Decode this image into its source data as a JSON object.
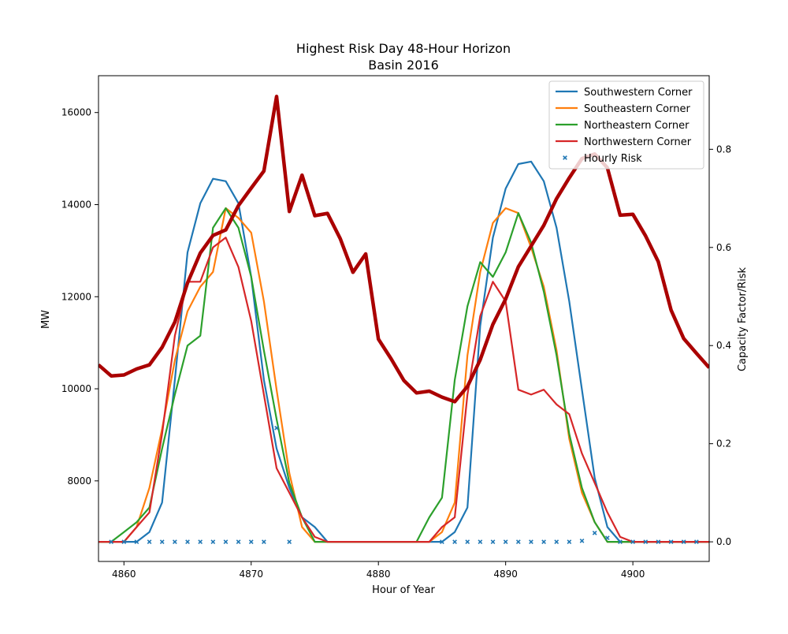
{
  "chart_data": {
    "type": "line",
    "title": "Highest Risk Day 48-Hour Horizon",
    "subtitle": "Basin 2016",
    "xlabel": "Hour of Year",
    "ylabel": "MW",
    "y2label": "Capacity Factor/Risk",
    "xlim": [
      4858,
      4906
    ],
    "ylim": [
      6250,
      16800
    ],
    "y2lim": [
      -0.04,
      0.95
    ],
    "x_ticks": [
      4860,
      4870,
      4880,
      4890,
      4900
    ],
    "y_ticks": [
      8000,
      10000,
      12000,
      14000,
      16000
    ],
    "y2_ticks": [
      0.0,
      0.2,
      0.4,
      0.6,
      0.8
    ],
    "x_tick_labels": [
      "4860",
      "4870",
      "4880",
      "4890",
      "4900"
    ],
    "y_tick_labels": [
      "8000",
      "10000",
      "12000",
      "14000",
      "16000"
    ],
    "y2_tick_labels": [
      "0.0",
      "0.2",
      "0.4",
      "0.6",
      "0.8"
    ],
    "grid": false,
    "legend_position": "top-right",
    "x": [
      4858,
      4859,
      4860,
      4861,
      4862,
      4863,
      4864,
      4865,
      4866,
      4867,
      4868,
      4869,
      4870,
      4871,
      4872,
      4873,
      4874,
      4875,
      4876,
      4877,
      4878,
      4879,
      4880,
      4881,
      4882,
      4883,
      4884,
      4885,
      4886,
      4887,
      4888,
      4889,
      4890,
      4891,
      4892,
      4893,
      4894,
      4895,
      4896,
      4897,
      4898,
      4899,
      4900,
      4901,
      4902,
      4903,
      4904,
      4905,
      4906
    ],
    "load": {
      "axis": "left",
      "color": "#aa0000",
      "values": [
        10520,
        10280,
        10300,
        10430,
        10520,
        10900,
        11450,
        12300,
        12950,
        13330,
        13450,
        13980,
        14360,
        14730,
        16350,
        13850,
        14640,
        13760,
        13810,
        13260,
        12530,
        12930,
        11080,
        10650,
        10180,
        9910,
        9950,
        9820,
        9720,
        10050,
        10630,
        11400,
        11950,
        12650,
        13100,
        13550,
        14130,
        14580,
        15000,
        15100,
        14800,
        13770,
        13790,
        13320,
        12760,
        11710,
        11090,
        10770,
        10460
      ]
    },
    "series": [
      {
        "name": "Southwestern Corner",
        "color": "#1f77b4",
        "axis": "right",
        "values": [
          0,
          0,
          0,
          0,
          0.02,
          0.08,
          0.33,
          0.59,
          0.69,
          0.74,
          0.735,
          0.69,
          0.54,
          0.33,
          0.19,
          0.11,
          0.05,
          0.03,
          0,
          0,
          0,
          0,
          0,
          0,
          0,
          0,
          0,
          0,
          0.02,
          0.07,
          0.44,
          0.62,
          0.72,
          0.77,
          0.775,
          0.735,
          0.64,
          0.49,
          0.31,
          0.13,
          0.03,
          0,
          0,
          0,
          0,
          0,
          0,
          0,
          0
        ]
      },
      {
        "name": "Southeastern Corner",
        "color": "#ff7f0e",
        "axis": "right",
        "values": [
          0,
          0,
          0,
          0.03,
          0.11,
          0.23,
          0.37,
          0.47,
          0.52,
          0.55,
          0.68,
          0.66,
          0.63,
          0.49,
          0.31,
          0.14,
          0.03,
          0,
          0,
          0,
          0,
          0,
          0,
          0,
          0,
          0,
          0,
          0.02,
          0.08,
          0.38,
          0.55,
          0.65,
          0.68,
          0.67,
          0.6,
          0.52,
          0.39,
          0.21,
          0.1,
          0.04,
          0,
          0,
          0,
          0,
          0,
          0,
          0,
          0,
          0
        ]
      },
      {
        "name": "Northeastern Corner",
        "color": "#2ca02c",
        "axis": "right",
        "values": [
          0,
          0,
          0.02,
          0.04,
          0.07,
          0.19,
          0.3,
          0.4,
          0.42,
          0.64,
          0.68,
          0.64,
          0.54,
          0.39,
          0.25,
          0.12,
          0.05,
          0,
          0,
          0,
          0,
          0,
          0,
          0,
          0,
          0,
          0.05,
          0.09,
          0.33,
          0.48,
          0.57,
          0.54,
          0.59,
          0.67,
          0.61,
          0.51,
          0.38,
          0.22,
          0.11,
          0.04,
          0,
          0,
          0,
          0,
          0,
          0,
          0,
          0,
          0
        ]
      },
      {
        "name": "Northwestern Corner",
        "color": "#d62728",
        "axis": "right",
        "values": [
          0,
          0,
          0,
          0.03,
          0.06,
          0.22,
          0.42,
          0.53,
          0.53,
          0.6,
          0.62,
          0.56,
          0.45,
          0.3,
          0.15,
          0.1,
          0.05,
          0.01,
          0,
          0,
          0,
          0,
          0,
          0,
          0,
          0,
          0,
          0.03,
          0.05,
          0.3,
          0.46,
          0.53,
          0.49,
          0.31,
          0.3,
          0.31,
          0.28,
          0.26,
          0.18,
          0.12,
          0.06,
          0.01,
          0,
          0,
          0,
          0,
          0,
          0,
          0
        ]
      }
    ],
    "risk": {
      "name": "Hourly Risk",
      "color": "#1f77b4",
      "x": [
        4859,
        4860,
        4861,
        4862,
        4863,
        4864,
        4865,
        4866,
        4867,
        4868,
        4869,
        4870,
        4871,
        4872,
        4873,
        4885,
        4886,
        4887,
        4888,
        4889,
        4890,
        4891,
        4892,
        4893,
        4894,
        4895,
        4896,
        4897,
        4898,
        4899,
        4900,
        4901,
        4902,
        4903,
        4904,
        4905
      ],
      "values": [
        0,
        0,
        0,
        0,
        0,
        0,
        0,
        0,
        0,
        0,
        0,
        0,
        0,
        0.232,
        0,
        0,
        0,
        0,
        0,
        0,
        0,
        0,
        0,
        0,
        0,
        0,
        0.002,
        0.018,
        0.008,
        0,
        0,
        0,
        0,
        0,
        0,
        0
      ]
    }
  }
}
